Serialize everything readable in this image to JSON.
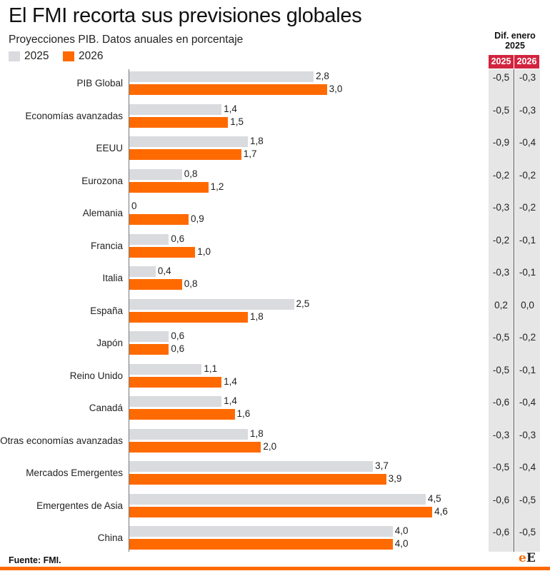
{
  "header": {
    "title": "El FMI recorta sus previsiones globales",
    "subtitle": "Proyecciones PIB. Datos anuales en porcentaje"
  },
  "legend": {
    "items": [
      {
        "label": "2025",
        "color": "#d9dbdf"
      },
      {
        "label": "2026",
        "color": "#ff6a00"
      }
    ]
  },
  "diff_table": {
    "title_line1": "Dif. enero",
    "title_line2": "2025",
    "headers": [
      "2025",
      "2026"
    ]
  },
  "footer": {
    "source": "Fuente: FMI.",
    "logo_e1": "e",
    "logo_e2": "E"
  },
  "chart_data": {
    "type": "bar",
    "orientation": "horizontal",
    "categories": [
      "PIB Global",
      "Economías avanzadas",
      "EEUU",
      "Eurozona",
      "Alemania",
      "Francia",
      "Italia",
      "España",
      "Japón",
      "Reino Unido",
      "Canadá",
      "Otras economías avanzadas",
      "Mercados Emergentes",
      "Emergentes de Asia",
      "China"
    ],
    "series": [
      {
        "name": "2025",
        "color": "#d9dbdf",
        "values": [
          2.8,
          1.4,
          1.8,
          0.8,
          0,
          0.6,
          0.4,
          2.5,
          0.6,
          1.1,
          1.4,
          1.8,
          3.7,
          4.5,
          4.0
        ],
        "labels": [
          "2,8",
          "1,4",
          "1,8",
          "0,8",
          "0",
          "0,6",
          "0,4",
          "2,5",
          "0,6",
          "1,1",
          "1,4",
          "1,8",
          "3,7",
          "4,5",
          "4,0"
        ]
      },
      {
        "name": "2026",
        "color": "#ff6a00",
        "values": [
          3.0,
          1.5,
          1.7,
          1.2,
          0.9,
          1.0,
          0.8,
          1.8,
          0.6,
          1.4,
          1.6,
          2.0,
          3.9,
          4.6,
          4.0
        ],
        "labels": [
          "3,0",
          "1,5",
          "1,7",
          "1,2",
          "0,9",
          "1,0",
          "0,8",
          "1,8",
          "0,6",
          "1,4",
          "1,6",
          "2,0",
          "3,9",
          "4,6",
          "4,0"
        ]
      }
    ],
    "diff_jan_2025": {
      "2025": [
        "-0,5",
        "-0,5",
        "-0,9",
        "-0,2",
        "-0,3",
        "-0,2",
        "-0,3",
        "0,2",
        "-0,5",
        "-0,5",
        "-0,6",
        "-0,3",
        "-0,5",
        "-0,6",
        "-0,6"
      ],
      "2026": [
        "-0,3",
        "-0,3",
        "-0,4",
        "-0,2",
        "-0,2",
        "-0,1",
        "-0,1",
        "0,0",
        "-0,2",
        "-0,1",
        "-0,4",
        "-0,3",
        "-0,4",
        "-0,5",
        "-0,5"
      ]
    },
    "xlim": [
      0,
      5
    ],
    "grid": false
  }
}
